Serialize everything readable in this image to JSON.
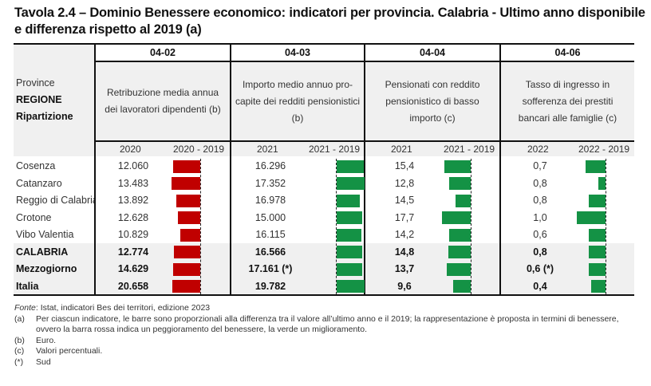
{
  "title": {
    "line1": "Tavola 2.4 – Dominio Benessere economico: indicatori per provincia. Calabria - Ultimo anno disponibile",
    "line2": "e differenza rispetto al 2019 (a)"
  },
  "header": {
    "row_labels": [
      "Province",
      "REGIONE",
      "Ripartizione"
    ],
    "groups": [
      {
        "code": "04-02",
        "description": "Retribuzione media annua dei lavoratori dipendenti (b)",
        "year": "2020",
        "diff": "2020 - 2019",
        "bar_color": "#c00000",
        "direction": "left"
      },
      {
        "code": "04-03",
        "description": "Importo medio annuo pro-capite dei redditi pensionistici (b)",
        "year": "2021",
        "diff": "2021 - 2019",
        "bar_color": "#149245",
        "direction": "right"
      },
      {
        "code": "04-04",
        "description": "Pensionati con reddito pensionistico di basso importo (c)",
        "year": "2021",
        "diff": "2021 - 2019",
        "bar_color": "#149245",
        "direction": "left"
      },
      {
        "code": "04-06",
        "description": "Tasso di ingresso in sofferenza dei prestiti bancari alle famiglie (c)",
        "year": "2022",
        "diff": "2022 - 2019",
        "bar_color": "#149245",
        "direction": "left"
      }
    ]
  },
  "rows": [
    {
      "name": "Cosenza",
      "bold": false,
      "values": [
        "12.060",
        "16.296",
        "15,4",
        "0,7"
      ],
      "bars": [
        0.94,
        0.94,
        0.92,
        0.69
      ]
    },
    {
      "name": "Catanzaro",
      "bold": false,
      "values": [
        "13.483",
        "17.352",
        "12,8",
        "0,8"
      ],
      "bars": [
        1.0,
        0.97,
        0.75,
        0.26
      ]
    },
    {
      "name": "Reggio di Calabria",
      "bold": false,
      "values": [
        "13.892",
        "16.978",
        "14,5",
        "0,8"
      ],
      "bars": [
        0.83,
        0.8,
        0.53,
        0.57
      ]
    },
    {
      "name": "Crotone",
      "bold": false,
      "values": [
        "12.628",
        "15.000",
        "17,7",
        "1,0"
      ],
      "bars": [
        0.77,
        0.89,
        1.0,
        1.0
      ]
    },
    {
      "name": "Vibo Valentia",
      "bold": false,
      "values": [
        "10.829",
        "16.115",
        "14,2",
        "0,6"
      ],
      "bars": [
        0.69,
        0.86,
        0.75,
        0.57
      ]
    },
    {
      "name": "CALABRIA",
      "bold": true,
      "values": [
        "12.774",
        "16.566",
        "14,8",
        "0,8"
      ],
      "bars": [
        0.91,
        0.89,
        0.78,
        0.57
      ]
    },
    {
      "name": "Mezzogiorno",
      "bold": true,
      "values": [
        "14.629",
        "17.161 (*)",
        "13,7",
        "0,6 (*)"
      ],
      "bars": [
        0.94,
        0.89,
        0.83,
        0.57
      ]
    },
    {
      "name": "Italia",
      "bold": true,
      "values": [
        "20.658",
        "19.782",
        "9,6",
        "0,4"
      ],
      "bars": [
        0.97,
        0.97,
        0.61,
        0.51
      ]
    }
  ],
  "footnotes": {
    "source_label": "Fonte",
    "source_text": ": Istat, indicatori Bes dei territori, edizione 2023",
    "notes": [
      {
        "key": "(a)",
        "text": "Per ciascun indicatore, le barre sono proporzionali alla differenza tra il valore all’ultimo anno e il 2019; la rappresentazione è proposta in termini di benessere, ovvero la barra rossa indica un peggioramento del benessere, la verde un miglioramento."
      },
      {
        "key": "(b)",
        "text": "Euro."
      },
      {
        "key": "(c)",
        "text": "Valori percentuali."
      },
      {
        "key": "(*)",
        "text": "Sud"
      }
    ]
  }
}
